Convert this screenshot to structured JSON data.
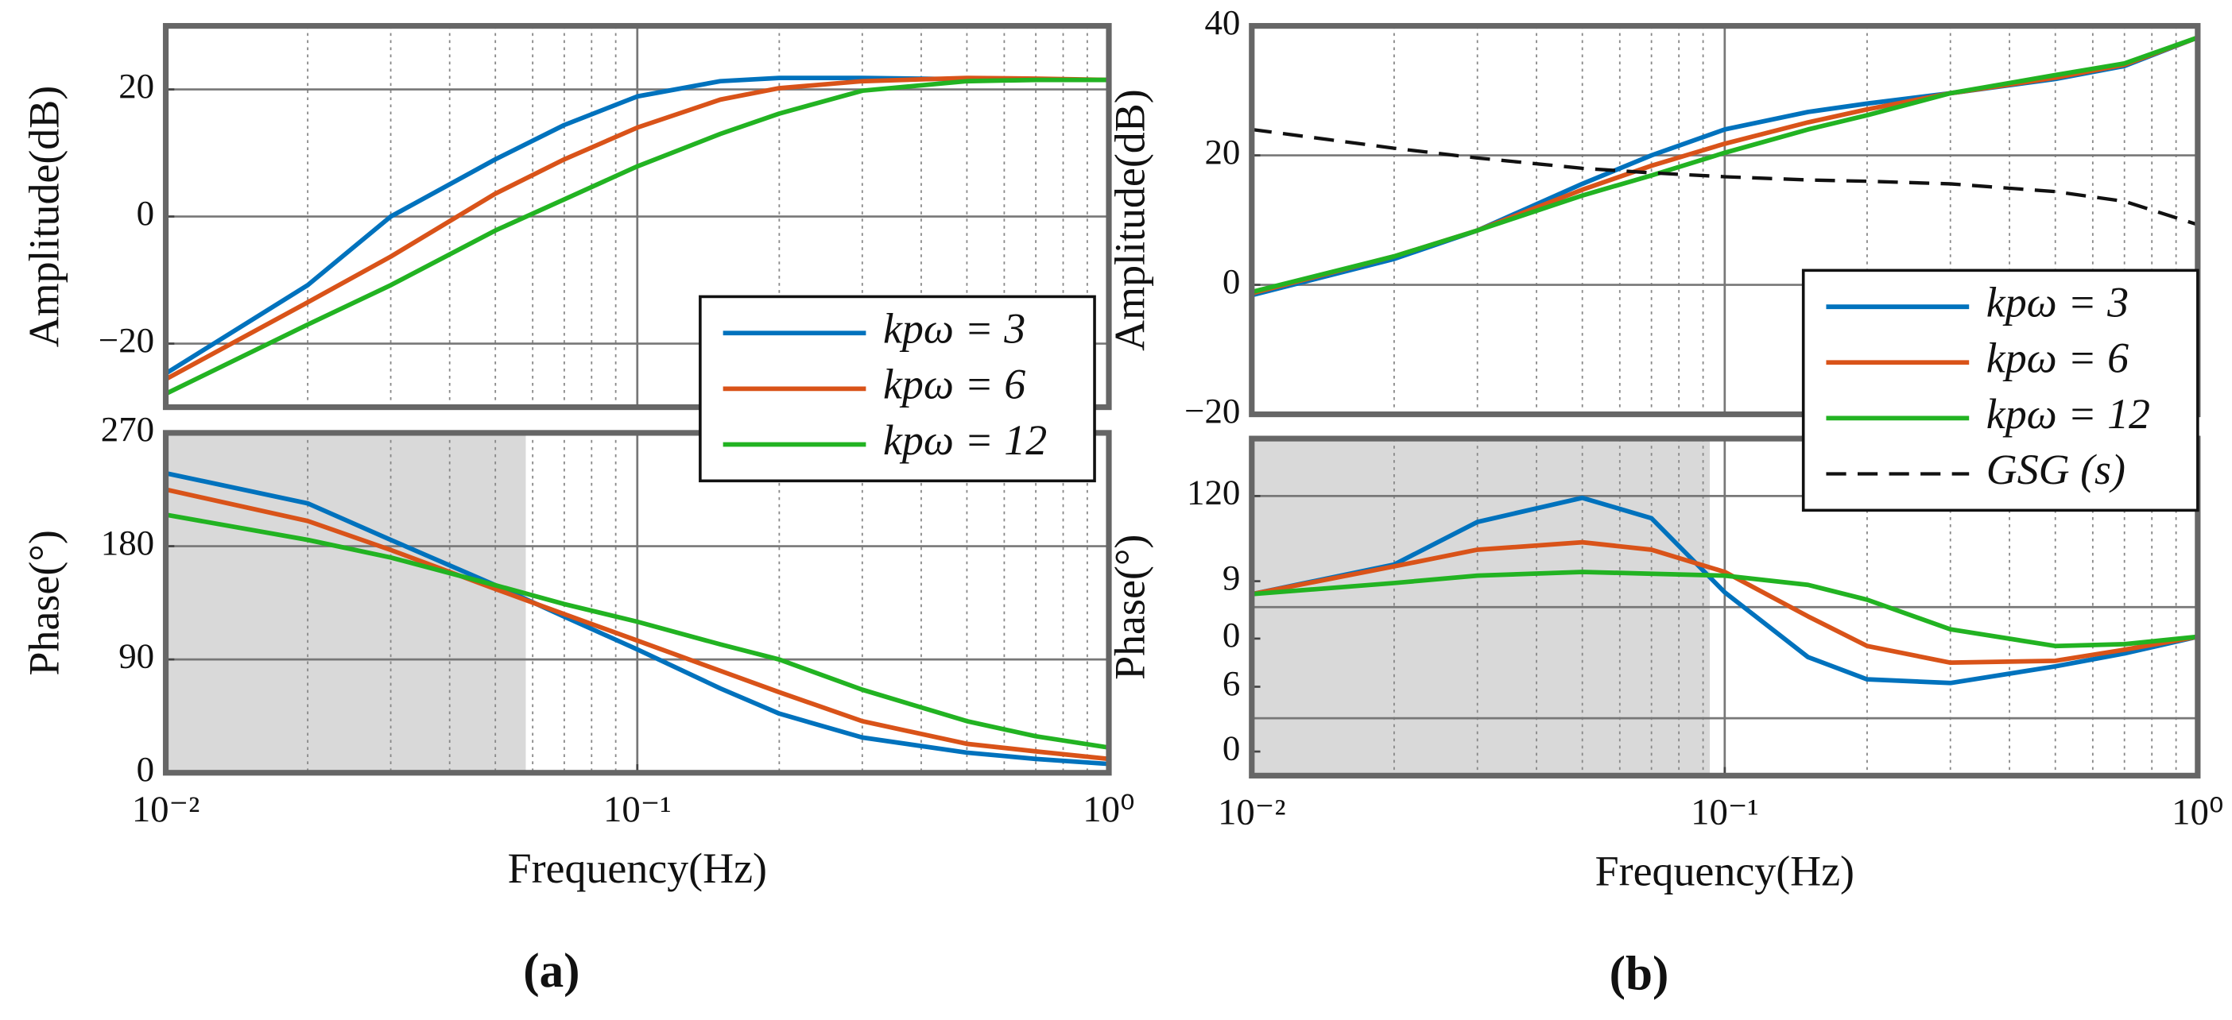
{
  "chart_data": [
    {
      "type": "line",
      "ylabel": "Amplitude(dB)",
      "log_x": true,
      "grid": true,
      "legend": "lower right",
      "x": [
        0.01,
        0.02,
        0.03,
        0.05,
        0.07,
        0.1,
        0.15,
        0.2,
        0.3,
        0.5,
        0.7,
        1
      ],
      "xlim": [
        0.01,
        1
      ],
      "ylim": [
        -30,
        30
      ],
      "yticks": [
        {
          "value": -20,
          "label": "−20"
        },
        0,
        20
      ],
      "series": [
        {
          "name": "kpω = 3",
          "color": "#0072bd",
          "values": [
            -24.7,
            -10.8,
            0,
            9,
            14.4,
            18.9,
            21.3,
            21.8,
            21.8,
            21.6,
            21.5,
            21.5
          ]
        },
        {
          "name": "kpω = 6",
          "color": "#d95319",
          "values": [
            -25.6,
            -13.5,
            -6.3,
            3.6,
            9,
            14,
            18.4,
            20.2,
            21.3,
            21.8,
            21.7,
            21.5
          ]
        },
        {
          "name": "kpω = 12",
          "color": "#22b322",
          "values": [
            -27.9,
            -17,
            -10.8,
            -2.2,
            2.7,
            7.9,
            13,
            16.2,
            19.8,
            21.3,
            21.5,
            21.5
          ]
        }
      ]
    },
    {
      "type": "line",
      "ylabel": "Phase(°)",
      "xlabel": "Frequency(Hz)",
      "caption": "(a)",
      "log_x": true,
      "grid": true,
      "shaded_xrange": [
        0.01,
        0.058
      ],
      "x": [
        0.01,
        0.02,
        0.03,
        0.05,
        0.07,
        0.1,
        0.15,
        0.2,
        0.3,
        0.5,
        0.7,
        1
      ],
      "xlim": [
        0.01,
        1
      ],
      "xticks": [
        {
          "value": 0.01,
          "label": "10⁻²"
        },
        {
          "value": 0.1,
          "label": "10⁻¹"
        },
        {
          "value": 1,
          "label": "10⁰"
        }
      ],
      "ylim": [
        0,
        270
      ],
      "yticks": [
        0,
        90,
        180,
        270
      ],
      "series": [
        {
          "name": "kpω = 3",
          "color": "#0072bd",
          "values": [
            238,
            214,
            185,
            149,
            124,
            98,
            67,
            47,
            28,
            16,
            11,
            7
          ]
        },
        {
          "name": "kpω = 6",
          "color": "#d95319",
          "values": [
            225,
            200,
            177,
            146,
            126,
            105,
            81,
            64,
            41,
            23,
            17,
            11
          ]
        },
        {
          "name": "kpω = 12",
          "color": "#22b322",
          "values": [
            205,
            185,
            171,
            149,
            134,
            120,
            102,
            90,
            66,
            41,
            29,
            20
          ]
        }
      ]
    },
    {
      "type": "line",
      "ylabel": "Amplitude(dB)",
      "log_x": true,
      "grid": true,
      "legend": "lower right",
      "x": [
        0.01,
        0.02,
        0.03,
        0.05,
        0.07,
        0.1,
        0.15,
        0.2,
        0.3,
        0.5,
        0.7,
        1
      ],
      "xlim": [
        0.01,
        1
      ],
      "ylim": [
        -20,
        40
      ],
      "yticks": [
        {
          "value": -20,
          "label": "−20"
        },
        0,
        20,
        40
      ],
      "series": [
        {
          "name": "kpω = 3",
          "color": "#0072bd",
          "values": [
            -1.6,
            4,
            8.4,
            15.6,
            20,
            24,
            26.7,
            28,
            29.6,
            31.8,
            33.8,
            38.2
          ]
        },
        {
          "name": "kpω = 6",
          "color": "#d95319",
          "values": [
            -1.3,
            4.4,
            8.4,
            14.7,
            18.4,
            21.8,
            25.1,
            27.1,
            29.6,
            32,
            34,
            38.2
          ]
        },
        {
          "name": "kpω = 12",
          "color": "#22b322",
          "values": [
            -1.1,
            4.4,
            8.4,
            13.8,
            16.9,
            20.4,
            24,
            26.2,
            29.6,
            32.4,
            34.2,
            38.2
          ]
        },
        {
          "name": "GSG (s)",
          "color": "#111111",
          "dashed": true,
          "values": [
            24,
            21.1,
            19.6,
            18,
            17.3,
            16.7,
            16.2,
            16,
            15.6,
            14.4,
            12.9,
            9.3
          ]
        }
      ]
    },
    {
      "type": "line",
      "ylabel": "Phase(°)",
      "xlabel": "Frequency(Hz)",
      "caption": "(b)",
      "log_x": true,
      "grid": true,
      "shaded_xrange": [
        0.01,
        0.093
      ],
      "x": [
        0.01,
        0.02,
        0.03,
        0.05,
        0.07,
        0.1,
        0.15,
        0.2,
        0.3,
        0.5,
        0.7,
        1
      ],
      "xlim": [
        0.01,
        1
      ],
      "xticks": [
        {
          "value": 0.01,
          "label": "10⁻²"
        },
        {
          "value": 0.1,
          "label": "10⁻¹"
        },
        {
          "value": 1,
          "label": "10⁰"
        }
      ],
      "ylim": [
        -31,
        151
      ],
      "yticks": [
        {
          "value": -18,
          "label": "0"
        },
        {
          "value": 17,
          "label": "6"
        },
        {
          "value": 43,
          "label": "0"
        },
        {
          "value": 74,
          "label": "9"
        },
        120
      ],
      "ygrid": [
        0,
        60,
        120
      ],
      "series": [
        {
          "name": "kpω = 3",
          "color": "#0072bd",
          "values": [
            67,
            83,
            106,
            119,
            108,
            68,
            33,
            21,
            19,
            28,
            35,
            44
          ]
        },
        {
          "name": "kpω = 6",
          "color": "#d95319",
          "values": [
            67,
            82,
            91,
            95,
            91,
            79,
            55,
            39,
            30,
            31,
            37,
            44
          ]
        },
        {
          "name": "kpω = 12",
          "color": "#22b322",
          "values": [
            67,
            73,
            77,
            79,
            78,
            77,
            72,
            64,
            48,
            39,
            40,
            44
          ]
        }
      ]
    }
  ]
}
